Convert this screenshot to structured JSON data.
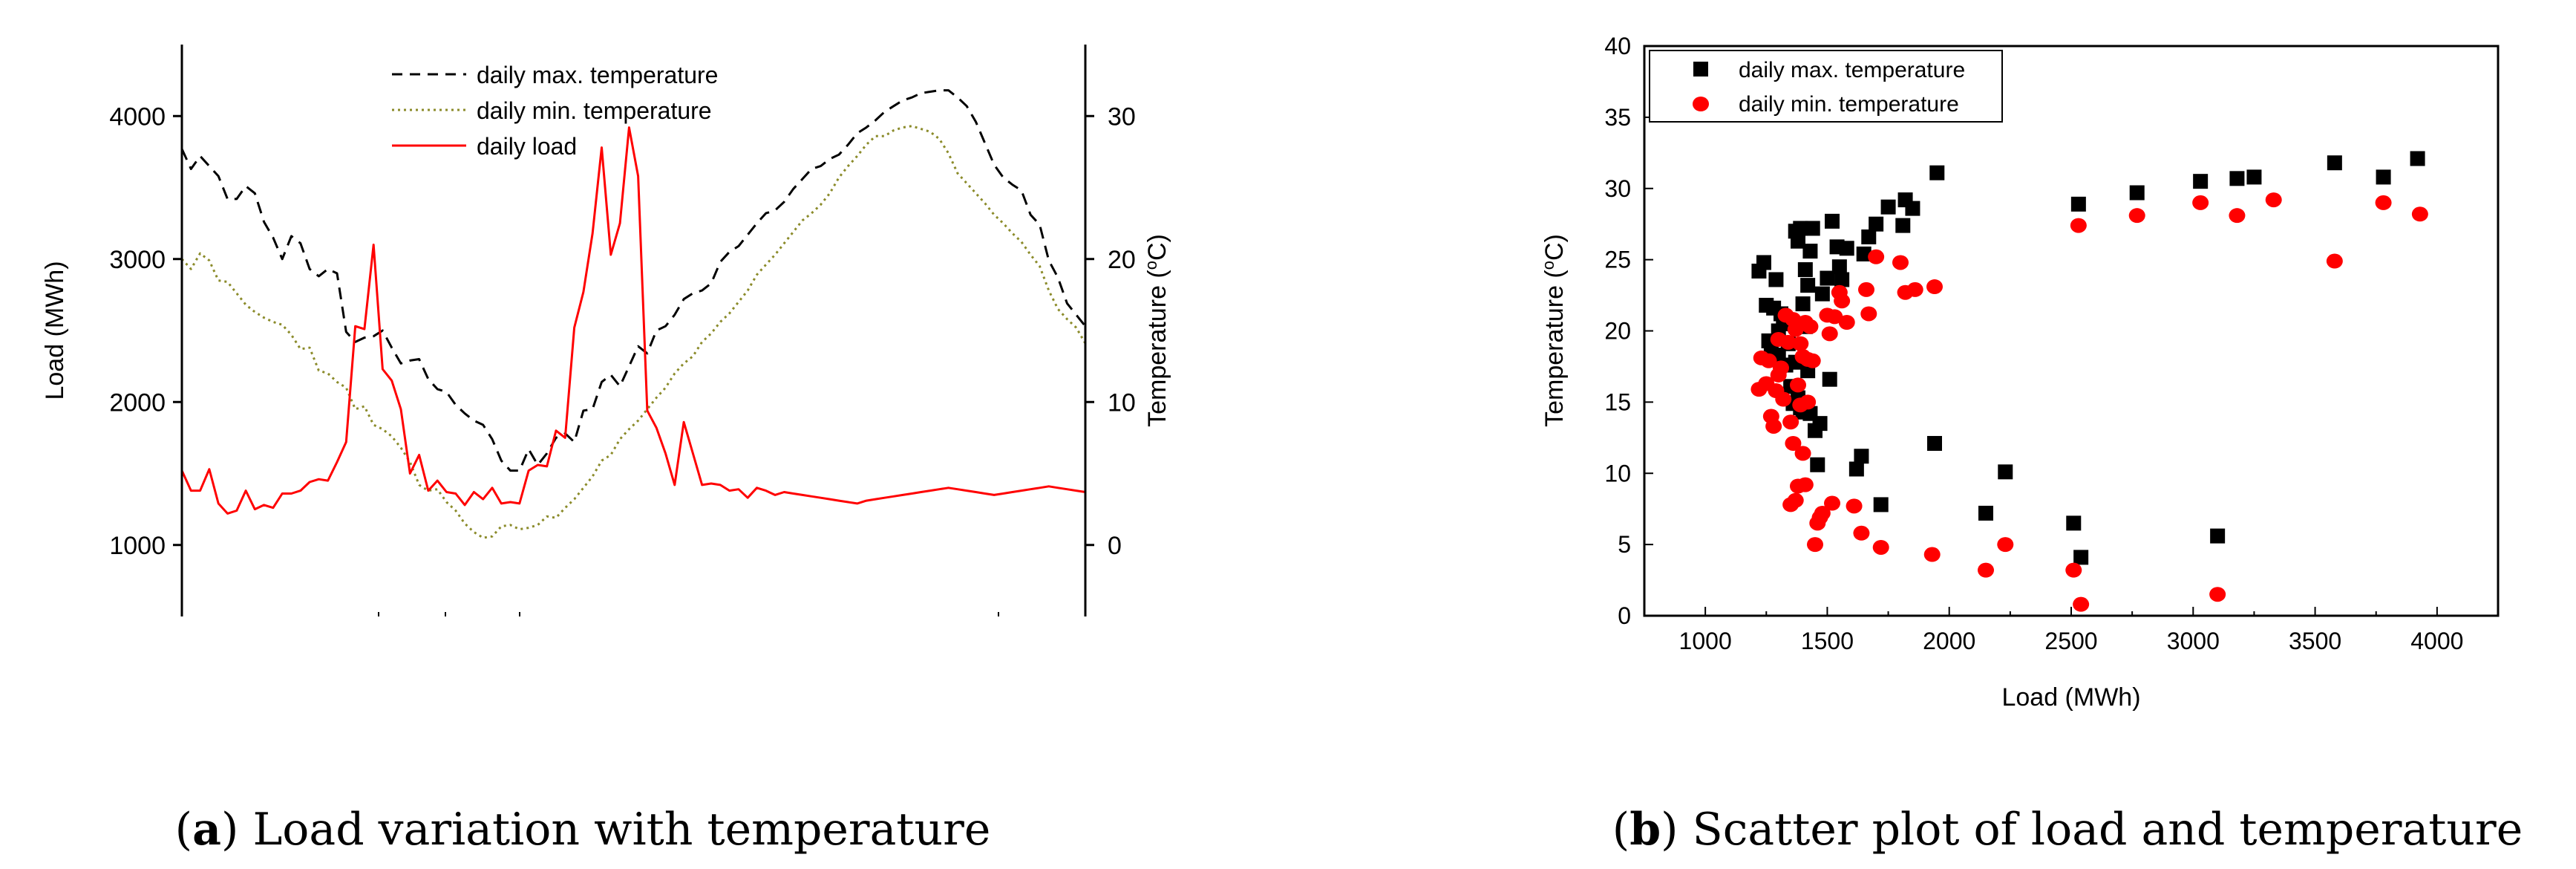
{
  "chart_data": [
    {
      "type": "line",
      "caption_label": "a",
      "caption_text": " Load variation with temperature",
      "ylabel": "Load (MWh)",
      "y2label_main": "Temperature (",
      "y2label_sup": "o",
      "y2label_end": "C)",
      "ylim": [
        500,
        4500
      ],
      "y2lim": [
        -5,
        35
      ],
      "yticks": [
        "1000",
        "2000",
        "3000",
        "4000"
      ],
      "y2ticks": [
        "0",
        "10",
        "20",
        "30"
      ],
      "ytick_values": [
        1000,
        2000,
        3000,
        4000
      ],
      "y2tick_values": [
        0,
        10,
        20,
        30
      ],
      "n_days": 100,
      "series": [
        {
          "name": "daily max. temperature",
          "axis": "right",
          "color": "#000000",
          "style": "dashed",
          "values": [
            27.7,
            26.3,
            27.2,
            26.5,
            25.8,
            24.2,
            24.2,
            25.1,
            24.6,
            22.6,
            21.5,
            20.0,
            21.6,
            21.1,
            19.3,
            18.8,
            19.3,
            19.0,
            14.9,
            14.2,
            14.5,
            14.6,
            15.0,
            13.8,
            12.7,
            12.9,
            13.0,
            11.6,
            10.9,
            10.7,
            9.8,
            9.2,
            8.7,
            8.4,
            7.4,
            5.9,
            5.2,
            5.2,
            6.7,
            5.6,
            6.4,
            7.5,
            7.8,
            7.2,
            9.4,
            9.5,
            11.4,
            11.9,
            11.1,
            12.5,
            13.9,
            13.4,
            15.0,
            15.3,
            16.1,
            17.2,
            17.6,
            17.8,
            18.3,
            19.8,
            20.5,
            20.9,
            21.7,
            22.5,
            23.2,
            23.4,
            24.0,
            24.9,
            25.6,
            26.3,
            26.5,
            27.0,
            27.3,
            28.0,
            28.8,
            29.2,
            29.7,
            30.3,
            30.7,
            31.1,
            31.3,
            31.6,
            31.7,
            31.8,
            31.8,
            31.3,
            30.7,
            29.6,
            28.1,
            26.6,
            25.7,
            25.2,
            24.8,
            23.1,
            22.4,
            19.9,
            18.7,
            16.9,
            16.1,
            15.3
          ]
        },
        {
          "name": "daily min. temperature",
          "axis": "right",
          "color": "#8b8b2a",
          "style": "dotted",
          "values": [
            20.0,
            19.3,
            20.4,
            19.9,
            18.5,
            18.4,
            17.6,
            16.8,
            16.3,
            15.9,
            15.6,
            15.4,
            14.7,
            13.7,
            13.8,
            12.2,
            12.0,
            11.4,
            11.0,
            9.5,
            9.7,
            8.4,
            8.1,
            7.6,
            6.8,
            5.8,
            4.2,
            3.8,
            3.9,
            3.0,
            2.4,
            1.5,
            0.9,
            0.5,
            0.6,
            1.3,
            1.4,
            1.1,
            1.2,
            1.4,
            2.0,
            1.9,
            2.6,
            3.2,
            4.0,
            4.8,
            5.9,
            6.3,
            7.4,
            8.1,
            8.7,
            9.5,
            10.3,
            11.0,
            12.0,
            12.7,
            13.2,
            14.2,
            14.8,
            15.6,
            16.2,
            17.0,
            17.8,
            18.9,
            19.6,
            20.3,
            21.1,
            21.9,
            22.7,
            23.2,
            23.8,
            24.6,
            25.7,
            26.5,
            27.2,
            28.0,
            28.6,
            28.6,
            29.0,
            29.2,
            29.3,
            29.1,
            28.9,
            28.4,
            27.4,
            26.0,
            25.3,
            24.6,
            23.9,
            23.1,
            22.5,
            21.8,
            21.2,
            20.3,
            19.5,
            17.8,
            16.5,
            15.8,
            15.2,
            14.1
          ]
        },
        {
          "name": "daily load",
          "axis": "left",
          "color": "#ff0000",
          "style": "solid",
          "values": [
            1520,
            1380,
            1380,
            1530,
            1290,
            1220,
            1240,
            1380,
            1250,
            1280,
            1260,
            1360,
            1360,
            1380,
            1440,
            1460,
            1450,
            1580,
            1720,
            2530,
            2510,
            3100,
            2230,
            2150,
            1950,
            1500,
            1630,
            1380,
            1450,
            1370,
            1360,
            1280,
            1370,
            1320,
            1400,
            1290,
            1300,
            1290,
            1520,
            1560,
            1550,
            1800,
            1750,
            2520,
            2770,
            3180,
            3780,
            3030,
            3250,
            3920,
            3580,
            1940,
            1820,
            1640,
            1420,
            1860,
            1640,
            1420,
            1430,
            1420,
            1380,
            1390,
            1330,
            1400,
            1380,
            1350,
            1370,
            1360,
            1350,
            1340,
            1330,
            1320,
            1310,
            1300,
            1290,
            1310,
            1320,
            1330,
            1340,
            1350,
            1360,
            1370,
            1380,
            1390,
            1400,
            1390,
            1380,
            1370,
            1360,
            1350,
            1360,
            1370,
            1380,
            1390,
            1400,
            1410,
            1400,
            1390,
            1380,
            1370
          ]
        }
      ],
      "legend_position": "top-center"
    },
    {
      "type": "scatter",
      "caption_label": "b",
      "caption_text": " Scatter plot of load and temperature",
      "xlabel": "Load (MWh)",
      "ylabel_main": "Temperature (",
      "ylabel_sup": "o",
      "ylabel_end": "C)",
      "xlim": [
        750,
        4250
      ],
      "ylim": [
        0,
        40
      ],
      "xticks": [
        "1000",
        "1500",
        "2000",
        "2500",
        "3000",
        "3500",
        "4000"
      ],
      "yticks": [
        "0",
        "5",
        "10",
        "15",
        "20",
        "25",
        "30",
        "35",
        "40"
      ],
      "xtick_values": [
        1000,
        1500,
        2000,
        2500,
        3000,
        3500,
        4000
      ],
      "ytick_values": [
        0,
        5,
        10,
        15,
        20,
        25,
        30,
        35,
        40
      ],
      "legend_position": "top-left",
      "series": [
        {
          "name": "daily max. temperature",
          "marker": "square",
          "color": "#000000",
          "points": [
            [
              1220,
              24.2
            ],
            [
              1240,
              24.8
            ],
            [
              1250,
              21.8
            ],
            [
              1260,
              19.3
            ],
            [
              1270,
              18.9
            ],
            [
              1280,
              21.6
            ],
            [
              1290,
              23.6
            ],
            [
              1300,
              20.0
            ],
            [
              1300,
              18.3
            ],
            [
              1310,
              21.2
            ],
            [
              1320,
              20.9
            ],
            [
              1330,
              17.6
            ],
            [
              1340,
              19.1
            ],
            [
              1350,
              16.1
            ],
            [
              1360,
              14.9
            ],
            [
              1360,
              20.5
            ],
            [
              1370,
              27.0
            ],
            [
              1370,
              17.8
            ],
            [
              1380,
              26.3
            ],
            [
              1380,
              15.3
            ],
            [
              1390,
              14.6
            ],
            [
              1390,
              27.2
            ],
            [
              1400,
              14.3
            ],
            [
              1400,
              21.9
            ],
            [
              1410,
              24.3
            ],
            [
              1410,
              20.3
            ],
            [
              1420,
              23.2
            ],
            [
              1420,
              17.2
            ],
            [
              1430,
              25.6
            ],
            [
              1430,
              14.2
            ],
            [
              1440,
              27.2
            ],
            [
              1450,
              13.0
            ],
            [
              1460,
              10.6
            ],
            [
              1470,
              13.5
            ],
            [
              1480,
              22.6
            ],
            [
              1500,
              23.7
            ],
            [
              1510,
              16.6
            ],
            [
              1520,
              27.7
            ],
            [
              1540,
              25.9
            ],
            [
              1550,
              24.5
            ],
            [
              1560,
              23.6
            ],
            [
              1580,
              25.8
            ],
            [
              1620,
              10.3
            ],
            [
              1640,
              11.2
            ],
            [
              1650,
              25.4
            ],
            [
              1670,
              26.6
            ],
            [
              1700,
              27.5
            ],
            [
              1720,
              7.8
            ],
            [
              1750,
              28.7
            ],
            [
              1810,
              27.4
            ],
            [
              1820,
              29.2
            ],
            [
              1850,
              28.6
            ],
            [
              1940,
              12.1
            ],
            [
              1950,
              31.1
            ],
            [
              2150,
              7.2
            ],
            [
              2230,
              10.1
            ],
            [
              2510,
              6.5
            ],
            [
              2530,
              28.9
            ],
            [
              2540,
              4.1
            ],
            [
              2770,
              29.7
            ],
            [
              3030,
              30.5
            ],
            [
              3100,
              5.6
            ],
            [
              3180,
              30.7
            ],
            [
              3250,
              30.8
            ],
            [
              3580,
              31.8
            ],
            [
              3780,
              30.8
            ],
            [
              3920,
              32.1
            ]
          ]
        },
        {
          "name": "daily min. temperature",
          "marker": "circle",
          "color": "#ff0000",
          "points": [
            [
              1220,
              15.9
            ],
            [
              1230,
              18.1
            ],
            [
              1250,
              16.3
            ],
            [
              1260,
              17.9
            ],
            [
              1270,
              14.0
            ],
            [
              1280,
              13.3
            ],
            [
              1290,
              15.8
            ],
            [
              1300,
              16.9
            ],
            [
              1300,
              19.4
            ],
            [
              1310,
              17.4
            ],
            [
              1320,
              15.2
            ],
            [
              1330,
              21.1
            ],
            [
              1340,
              19.2
            ],
            [
              1350,
              13.6
            ],
            [
              1350,
              7.8
            ],
            [
              1360,
              12.1
            ],
            [
              1360,
              20.8
            ],
            [
              1370,
              8.1
            ],
            [
              1370,
              20.1
            ],
            [
              1380,
              9.1
            ],
            [
              1380,
              16.2
            ],
            [
              1390,
              14.8
            ],
            [
              1390,
              19.1
            ],
            [
              1400,
              11.4
            ],
            [
              1400,
              18.2
            ],
            [
              1410,
              20.6
            ],
            [
              1410,
              9.2
            ],
            [
              1420,
              18.0
            ],
            [
              1420,
              15.0
            ],
            [
              1430,
              20.3
            ],
            [
              1440,
              17.9
            ],
            [
              1450,
              5.0
            ],
            [
              1460,
              6.5
            ],
            [
              1470,
              6.9
            ],
            [
              1480,
              7.2
            ],
            [
              1500,
              21.1
            ],
            [
              1510,
              19.8
            ],
            [
              1520,
              7.9
            ],
            [
              1530,
              21.0
            ],
            [
              1550,
              22.7
            ],
            [
              1560,
              22.1
            ],
            [
              1580,
              20.6
            ],
            [
              1610,
              7.7
            ],
            [
              1640,
              5.8
            ],
            [
              1660,
              22.9
            ],
            [
              1670,
              21.2
            ],
            [
              1700,
              25.2
            ],
            [
              1720,
              4.8
            ],
            [
              1800,
              24.8
            ],
            [
              1820,
              22.7
            ],
            [
              1860,
              22.9
            ],
            [
              1930,
              4.3
            ],
            [
              1940,
              23.1
            ],
            [
              2150,
              3.2
            ],
            [
              2230,
              5.0
            ],
            [
              2510,
              3.2
            ],
            [
              2530,
              27.4
            ],
            [
              2540,
              0.8
            ],
            [
              2770,
              28.1
            ],
            [
              3030,
              29.0
            ],
            [
              3100,
              1.5
            ],
            [
              3180,
              28.1
            ],
            [
              3330,
              29.2
            ],
            [
              3580,
              24.9
            ],
            [
              3780,
              29.0
            ],
            [
              3930,
              28.2
            ]
          ]
        }
      ]
    }
  ]
}
